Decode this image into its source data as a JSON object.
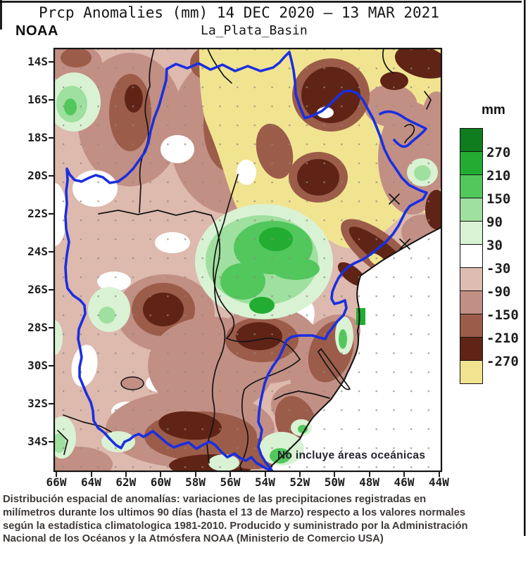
{
  "header": {
    "title": "Prcp Anomalies (mm) 14 DEC 2020 – 13 MAR 2021",
    "subtitle": "La_Plata_Basin",
    "agency": "NOAA"
  },
  "map": {
    "note": "No incluye áreas oceánicas",
    "lat_ticks": [
      "14S",
      "16S",
      "18S",
      "20S",
      "22S",
      "24S",
      "26S",
      "28S",
      "30S",
      "32S",
      "34S"
    ],
    "lon_ticks": [
      "66W",
      "64W",
      "62W",
      "60W",
      "58W",
      "56W",
      "54W",
      "52W",
      "50W",
      "48W",
      "46W",
      "44W"
    ]
  },
  "legend": {
    "unit": "mm",
    "boundary_values": [
      "270",
      "210",
      "150",
      "90",
      "30",
      "-30",
      "-90",
      "-150",
      "-210",
      "-270"
    ],
    "swatches": [
      {
        "color": "#0f7d1d"
      },
      {
        "color": "#22ad32"
      },
      {
        "color": "#52c75c"
      },
      {
        "color": "#9fdf9f"
      },
      {
        "color": "#d9f2d3"
      },
      {
        "color": "#ffffff"
      },
      {
        "color": "#dfbcb2"
      },
      {
        "color": "#c28f84"
      },
      {
        "color": "#9c5c4a"
      },
      {
        "color": "#5f2416"
      },
      {
        "color": "#f1e491"
      }
    ]
  },
  "caption": "Distribución espacial de anomalías: variaciones de las precipitaciones registradas en\nmilímetros durante los ultimos 90 días (hasta el 13 de Marzo) respecto a los valores normales\nsegún la estadística climatologica 1981-2010. Producido y suministrado por la Administración\nNacional de los Océanos y la Atmósfera NOAA (Ministerio de Comercio USA)",
  "colors": {
    "g4": "#0f7d1d",
    "g3": "#22ad32",
    "g2": "#52c75c",
    "g1": "#9fdf9f",
    "g0": "#d9f2d3",
    "white": "#ffffff",
    "p0": "#ddb9ae",
    "p1": "#c28f84",
    "p2": "#9c5c4a",
    "p3": "#5f2416",
    "yellow": "#f1e491",
    "basin": "#1a2fe0",
    "border": "#141414",
    "caption": "#3f3a38"
  }
}
